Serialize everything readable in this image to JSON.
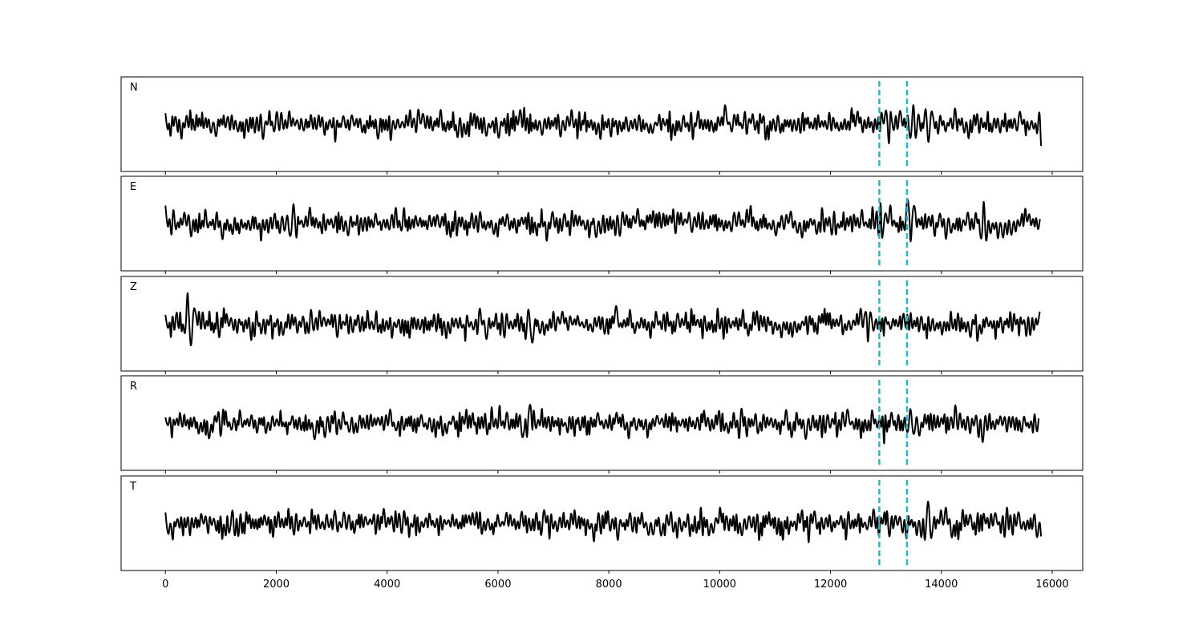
{
  "chart_data": {
    "type": "line",
    "layout": "stacked-panels",
    "shared_x_axis": true,
    "xlim": [
      -800,
      16550
    ],
    "x_ticks": [
      0,
      2000,
      4000,
      6000,
      8000,
      10000,
      12000,
      14000,
      16000
    ],
    "x_tick_labels": [
      "0",
      "2000",
      "4000",
      "6000",
      "8000",
      "10000",
      "12000",
      "14000",
      "16000"
    ],
    "x_range": [
      0,
      15800
    ],
    "y_ticks_visible": false,
    "grid": false,
    "trace_color": "#000000",
    "marker_color": "#17becf",
    "markers": [
      {
        "x": 12880,
        "style": "dashed"
      },
      {
        "x": 13380,
        "style": "dashed"
      }
    ],
    "panels": [
      {
        "label": "N",
        "spikes": [
          {
            "x": 450,
            "y": 0.55
          },
          {
            "x": 6500,
            "y": -0.6
          },
          {
            "x": 6470,
            "y": 0.65
          },
          {
            "x": 13050,
            "y": -0.75
          },
          {
            "x": 13480,
            "y": 0.75
          },
          {
            "x": 13750,
            "y": -0.7
          },
          {
            "x": 14250,
            "y": 0.62
          }
        ]
      },
      {
        "label": "E",
        "spikes": [
          {
            "x": 2300,
            "y": 0.6
          },
          {
            "x": 2350,
            "y": -0.55
          },
          {
            "x": 12770,
            "y": 0.65
          },
          {
            "x": 12900,
            "y": 0.8
          },
          {
            "x": 13370,
            "y": 0.75
          },
          {
            "x": 13440,
            "y": -0.7
          },
          {
            "x": 14100,
            "y": -0.6
          },
          {
            "x": 14760,
            "y": 0.85
          }
        ]
      },
      {
        "label": "Z",
        "spikes": [
          {
            "x": 400,
            "y": 0.95
          },
          {
            "x": 440,
            "y": -0.85
          },
          {
            "x": 12670,
            "y": 0.6
          },
          {
            "x": 12680,
            "y": -0.7
          },
          {
            "x": 6550,
            "y": 0.55
          }
        ]
      },
      {
        "label": "R",
        "spikes": [
          {
            "x": 6500,
            "y": 0.5
          },
          {
            "x": 6510,
            "y": -0.55
          },
          {
            "x": 12960,
            "y": -0.8
          },
          {
            "x": 13450,
            "y": 0.55
          },
          {
            "x": 14250,
            "y": 0.7
          },
          {
            "x": 14760,
            "y": -0.75
          }
        ]
      },
      {
        "label": "T",
        "spikes": [
          {
            "x": 1220,
            "y": 0.5
          },
          {
            "x": 11620,
            "y": -0.75
          },
          {
            "x": 12780,
            "y": 0.55
          },
          {
            "x": 13370,
            "y": -0.6
          },
          {
            "x": 13740,
            "y": 0.85
          },
          {
            "x": 13620,
            "y": -0.55
          }
        ]
      }
    ]
  }
}
